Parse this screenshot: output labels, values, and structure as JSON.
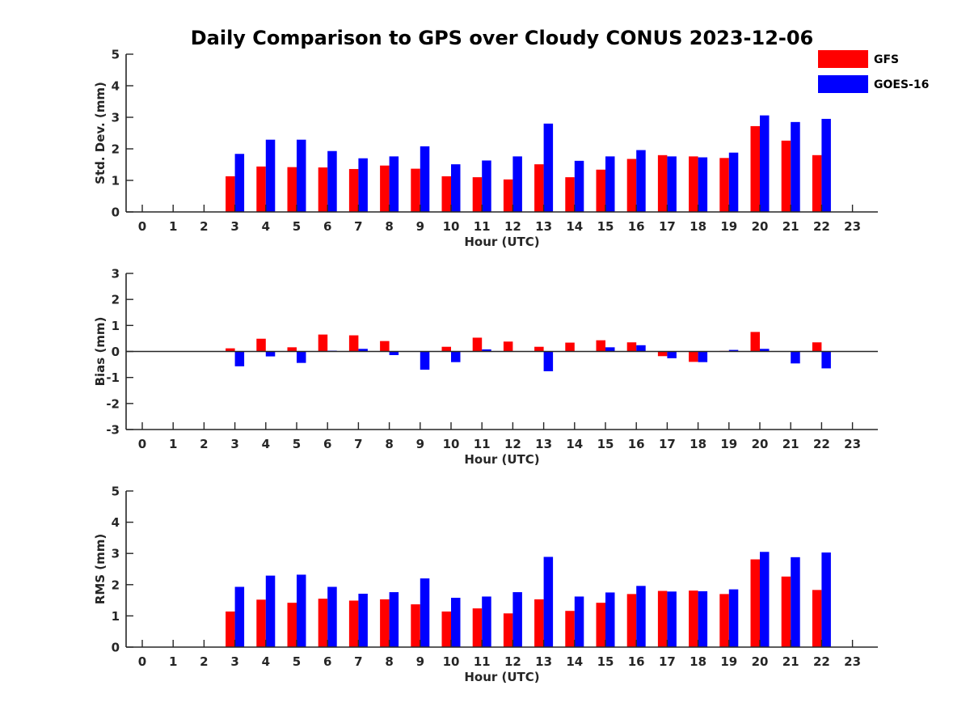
{
  "figure": {
    "title": "Daily Comparison to GPS over Cloudy CONUS 2023-12-06",
    "legend_placement": "top-right"
  },
  "colors": {
    "GFS": "#ff0000",
    "GOES-16": "#0000ff",
    "axis": "#262626"
  },
  "chart_data": [
    {
      "type": "bar",
      "ylabel": "Std. Dev. (mm)",
      "xlabel": "Hour (UTC)",
      "ylim": [
        0,
        5
      ],
      "yticks": [
        0,
        1,
        2,
        3,
        4,
        5
      ],
      "categories": [
        "0",
        "1",
        "2",
        "3",
        "4",
        "5",
        "6",
        "7",
        "8",
        "9",
        "10",
        "11",
        "12",
        "13",
        "14",
        "15",
        "16",
        "17",
        "18",
        "19",
        "20",
        "21",
        "22",
        "23"
      ],
      "series": [
        {
          "name": "GFS",
          "values": [
            null,
            null,
            null,
            1.13,
            1.44,
            1.42,
            1.41,
            1.36,
            1.47,
            1.37,
            1.13,
            1.1,
            1.03,
            1.51,
            1.1,
            1.34,
            1.68,
            1.8,
            1.76,
            1.71,
            2.72,
            2.26,
            1.8,
            null
          ]
        },
        {
          "name": "GOES-16",
          "values": [
            null,
            null,
            null,
            1.84,
            2.29,
            2.29,
            1.93,
            1.7,
            1.76,
            2.08,
            1.51,
            1.63,
            1.76,
            2.8,
            1.62,
            1.76,
            1.96,
            1.76,
            1.73,
            1.88,
            3.06,
            2.85,
            2.95,
            null
          ]
        }
      ],
      "grid": false
    },
    {
      "type": "bar",
      "ylabel": "Bias (mm)",
      "xlabel": "Hour (UTC)",
      "ylim": [
        -3,
        3
      ],
      "yticks": [
        -3,
        -2,
        -1,
        0,
        1,
        2,
        3
      ],
      "categories": [
        "0",
        "1",
        "2",
        "3",
        "4",
        "5",
        "6",
        "7",
        "8",
        "9",
        "10",
        "11",
        "12",
        "13",
        "14",
        "15",
        "16",
        "17",
        "18",
        "19",
        "20",
        "21",
        "22",
        "23"
      ],
      "series": [
        {
          "name": "GFS",
          "values": [
            null,
            null,
            null,
            0.12,
            0.49,
            0.16,
            0.65,
            0.62,
            0.4,
            0.0,
            0.18,
            0.53,
            0.38,
            0.18,
            0.34,
            0.43,
            0.35,
            -0.18,
            -0.4,
            0.02,
            0.75,
            0.0,
            0.35,
            null
          ]
        },
        {
          "name": "GOES-16",
          "values": [
            null,
            null,
            null,
            -0.57,
            -0.19,
            -0.44,
            0.03,
            0.1,
            -0.14,
            -0.7,
            -0.41,
            0.08,
            0.0,
            -0.76,
            0.0,
            0.16,
            0.24,
            -0.26,
            -0.41,
            0.06,
            0.1,
            -0.46,
            -0.65,
            null
          ]
        }
      ],
      "grid": false
    },
    {
      "type": "bar",
      "ylabel": "RMS (mm)",
      "xlabel": "Hour (UTC)",
      "ylim": [
        0,
        5
      ],
      "yticks": [
        0,
        1,
        2,
        3,
        4,
        5
      ],
      "categories": [
        "0",
        "1",
        "2",
        "3",
        "4",
        "5",
        "6",
        "7",
        "8",
        "9",
        "10",
        "11",
        "12",
        "13",
        "14",
        "15",
        "16",
        "17",
        "18",
        "19",
        "20",
        "21",
        "22",
        "23"
      ],
      "series": [
        {
          "name": "GFS",
          "values": [
            null,
            null,
            null,
            1.14,
            1.52,
            1.42,
            1.55,
            1.49,
            1.53,
            1.37,
            1.14,
            1.24,
            1.08,
            1.53,
            1.16,
            1.42,
            1.7,
            1.8,
            1.81,
            1.7,
            2.81,
            2.26,
            1.83,
            null
          ]
        },
        {
          "name": "GOES-16",
          "values": [
            null,
            null,
            null,
            1.93,
            2.29,
            2.32,
            1.93,
            1.71,
            1.76,
            2.2,
            1.58,
            1.62,
            1.76,
            2.89,
            1.62,
            1.75,
            1.96,
            1.78,
            1.79,
            1.85,
            3.05,
            2.88,
            3.03,
            null
          ]
        }
      ],
      "grid": false
    }
  ]
}
